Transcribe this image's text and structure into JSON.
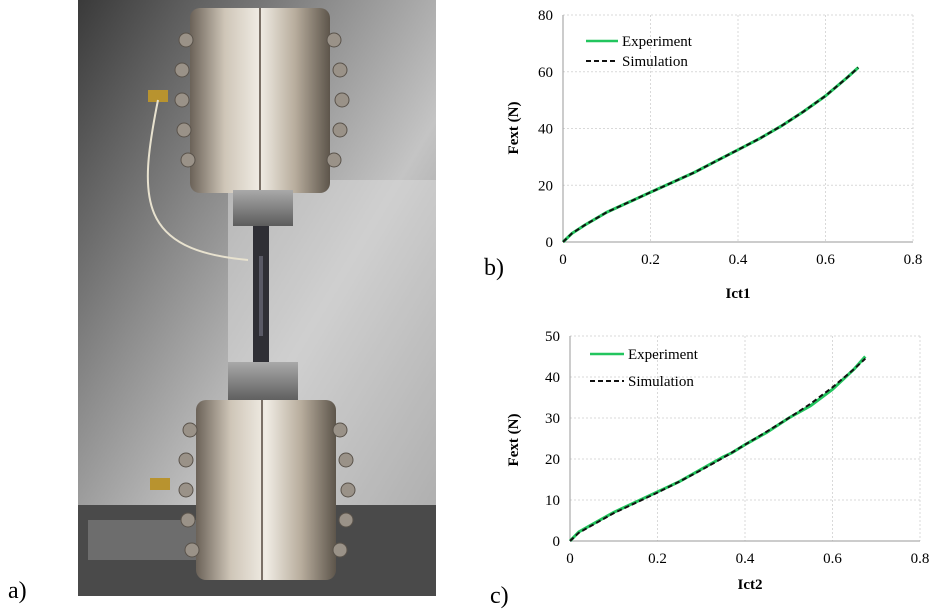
{
  "panels": {
    "a": "a)",
    "b": "b)",
    "c": "c)"
  },
  "colors": {
    "experiment": "#22c55e",
    "simulation": "#111111",
    "grid": "#d9d9d9"
  },
  "chart_data": [
    {
      "type": "line",
      "xlabel": "Ict1",
      "ylabel": "Fext (N)",
      "xlim": [
        0,
        0.8
      ],
      "ylim": [
        0,
        80
      ],
      "xticks": [
        0,
        0.2,
        0.4,
        0.6,
        0.8
      ],
      "yticks": [
        0,
        20,
        40,
        60,
        80
      ],
      "xtick_labels": [
        "0",
        "0.2",
        "0.4",
        "0.6",
        "0.8"
      ],
      "ytick_labels": [
        "0",
        "20",
        "40",
        "60",
        "80"
      ],
      "grid": true,
      "legend_position": "top-left",
      "series": [
        {
          "name": "Experiment",
          "style": "solid",
          "color": "#22c55e",
          "x": [
            0,
            0.02,
            0.05,
            0.1,
            0.15,
            0.2,
            0.25,
            0.3,
            0.35,
            0.4,
            0.45,
            0.5,
            0.55,
            0.6,
            0.65,
            0.675
          ],
          "y": [
            0,
            3,
            6,
            10.5,
            14,
            17.5,
            21,
            24.5,
            28.5,
            32.5,
            36.5,
            41,
            46,
            51.5,
            58,
            61.5
          ]
        },
        {
          "name": "Simulation",
          "style": "dashed",
          "color": "#111111",
          "x": [
            0,
            0.02,
            0.05,
            0.1,
            0.15,
            0.2,
            0.25,
            0.3,
            0.35,
            0.4,
            0.45,
            0.5,
            0.55,
            0.6,
            0.65,
            0.675
          ],
          "y": [
            0,
            3,
            6,
            10.5,
            14,
            17.5,
            21,
            24.5,
            28.5,
            32.5,
            36.5,
            41,
            46,
            51.5,
            58,
            61.5
          ]
        }
      ]
    },
    {
      "type": "line",
      "xlabel": "Ict2",
      "ylabel": "Fext (N)",
      "xlim": [
        0,
        0.8
      ],
      "ylim": [
        0,
        50
      ],
      "xticks": [
        0,
        0.2,
        0.4,
        0.6,
        0.8
      ],
      "yticks": [
        0,
        10,
        20,
        30,
        40,
        50
      ],
      "xtick_labels": [
        "0",
        "0.2",
        "0.4",
        "0.6",
        "0.8"
      ],
      "ytick_labels": [
        "0",
        "10",
        "20",
        "30",
        "40",
        "50"
      ],
      "grid": true,
      "legend_position": "top-left",
      "series": [
        {
          "name": "Experiment",
          "style": "solid",
          "color": "#22c55e",
          "x": [
            0,
            0.02,
            0.05,
            0.1,
            0.15,
            0.2,
            0.25,
            0.3,
            0.35,
            0.37,
            0.4,
            0.45,
            0.5,
            0.55,
            0.6,
            0.65,
            0.675
          ],
          "y": [
            0,
            2.2,
            4,
            7,
            9.5,
            12,
            14.5,
            17.5,
            20.5,
            21.5,
            23.5,
            26.5,
            30,
            33,
            37,
            42,
            45
          ]
        },
        {
          "name": "Simulation",
          "style": "dashed",
          "color": "#111111",
          "x": [
            0,
            0.02,
            0.05,
            0.1,
            0.15,
            0.2,
            0.25,
            0.3,
            0.35,
            0.4,
            0.45,
            0.5,
            0.55,
            0.6,
            0.65,
            0.675
          ],
          "y": [
            0,
            2,
            3.8,
            6.8,
            9.3,
            11.8,
            14.5,
            17.3,
            20.3,
            23.5,
            26.7,
            30,
            33.5,
            37.5,
            42,
            44.5
          ]
        }
      ]
    }
  ]
}
